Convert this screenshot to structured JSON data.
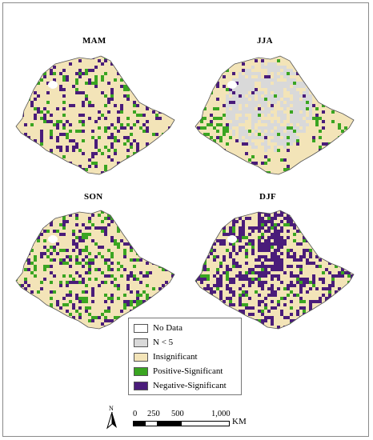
{
  "panels": [
    {
      "title": "MAM"
    },
    {
      "title": "JJA"
    },
    {
      "title": "SON"
    },
    {
      "title": "DJF"
    }
  ],
  "legend": {
    "items": [
      {
        "label": "No Data",
        "color": "#ffffff"
      },
      {
        "label": "N < 5",
        "color": "#d9d9d9"
      },
      {
        "label": "Insignificant",
        "color": "#f3e4b8"
      },
      {
        "label": "Positive-Significant",
        "color": "#3aa521"
      },
      {
        "label": "Negative-Significant",
        "color": "#4a1c7a"
      }
    ]
  },
  "scalebar": {
    "ticks": [
      "0",
      "250",
      "500",
      "1,000"
    ],
    "unit": "KM"
  },
  "north_arrow": {
    "label": "N"
  }
}
